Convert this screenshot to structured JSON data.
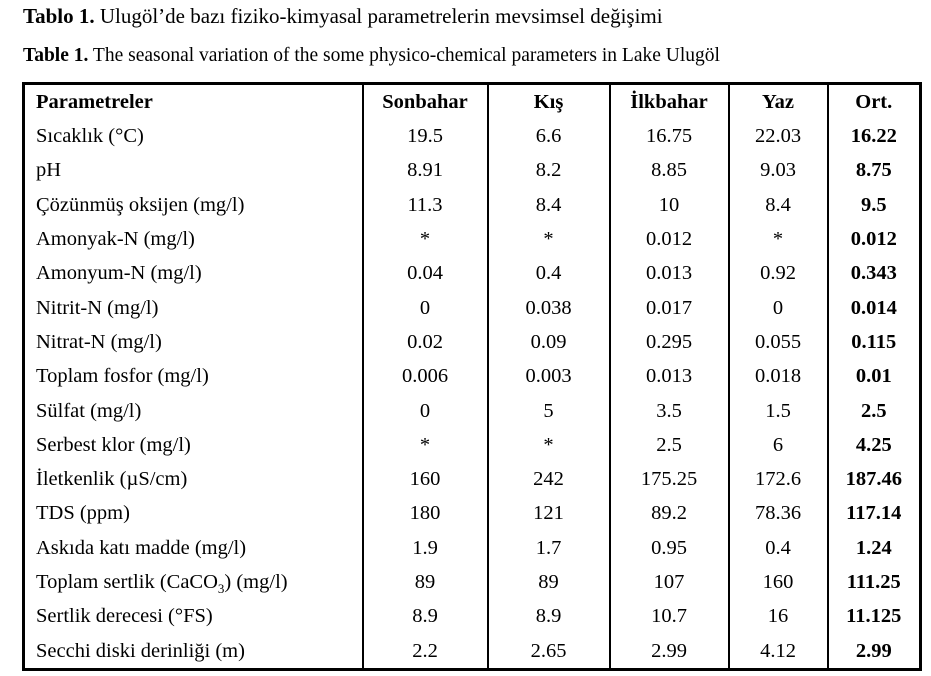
{
  "caption_tr": {
    "label": "Tablo 1.",
    "text": " Ulugöl’de bazı fiziko-kimyasal parametrelerin mevsimsel değişimi"
  },
  "caption_en": {
    "label": "Table 1.",
    "text": " The seasonal variation of the  some physico-chemical parameters in Lake Ulugöl"
  },
  "headers": [
    "Parametreler",
    "Sonbahar",
    "Kış",
    "İlkbahar",
    "Yaz",
    "Ort."
  ],
  "rows": [
    {
      "param": "Sıcaklık (°C)",
      "values": [
        "19.5",
        "6.6",
        "16.75",
        "22.03",
        "16.22"
      ]
    },
    {
      "param": "pH",
      "values": [
        "8.91",
        "8.2",
        "8.85",
        "9.03",
        "8.75"
      ]
    },
    {
      "param": "Çözünmüş oksijen (mg/l)",
      "values": [
        "11.3",
        "8.4",
        "10",
        "8.4",
        "9.5"
      ]
    },
    {
      "param": "Amonyak-N (mg/l)",
      "values": [
        "*",
        "*",
        "0.012",
        "*",
        "0.012"
      ]
    },
    {
      "param": "Amonyum-N (mg/l)",
      "values": [
        "0.04",
        "0.4",
        "0.013",
        "0.92",
        "0.343"
      ]
    },
    {
      "param": "Nitrit-N (mg/l)",
      "values": [
        "0",
        "0.038",
        "0.017",
        "0",
        "0.014"
      ]
    },
    {
      "param": "Nitrat-N (mg/l)",
      "values": [
        "0.02",
        "0.09",
        "0.295",
        "0.055",
        "0.115"
      ]
    },
    {
      "param": "Toplam fosfor (mg/l)",
      "values": [
        "0.006",
        "0.003",
        "0.013",
        "0.018",
        "0.01"
      ]
    },
    {
      "param": "Sülfat (mg/l)",
      "values": [
        "0",
        "5",
        "3.5",
        "1.5",
        "2.5"
      ]
    },
    {
      "param": "Serbest klor (mg/l)",
      "values": [
        "*",
        "*",
        "2.5",
        "6",
        "4.25"
      ]
    },
    {
      "param": "İletkenlik (µS/cm)",
      "values": [
        "160",
        "242",
        "175.25",
        "172.6",
        "187.46"
      ]
    },
    {
      "param": "TDS (ppm)",
      "values": [
        "180",
        "121",
        "89.2",
        "78.36",
        "117.14"
      ]
    },
    {
      "param": "Askıda katı madde (mg/l)",
      "values": [
        "1.9",
        "1.7",
        "0.95",
        "0.4",
        "1.24"
      ]
    },
    {
      "param": "Toplam sertlik (CaCO",
      "param_sub": "3",
      "param_after": ") (mg/l)",
      "values": [
        "89",
        "89",
        "107",
        "160",
        "111.25"
      ]
    },
    {
      "param": "Sertlik derecesi (°FS)",
      "values": [
        "8.9",
        "8.9",
        "10.7",
        "16",
        "11.125"
      ]
    },
    {
      "param": "Secchi diski derinliği (m)",
      "values": [
        "2.2",
        "2.65",
        "2.99",
        "4.12",
        "2.99"
      ]
    }
  ]
}
